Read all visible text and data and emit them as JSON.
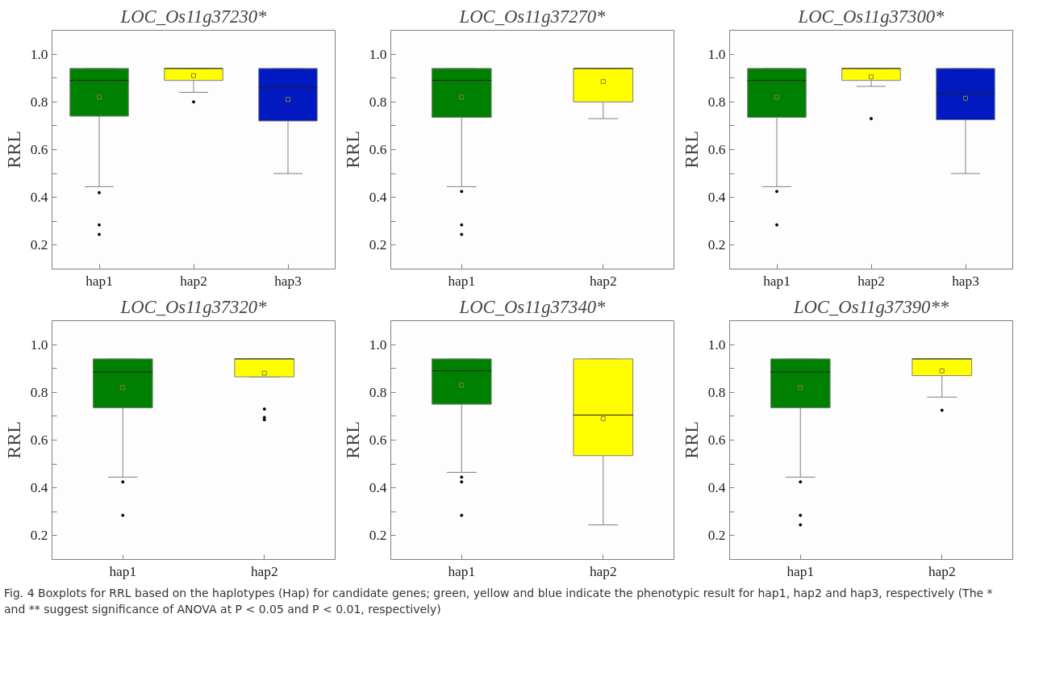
{
  "chart_data": [
    {
      "type": "box",
      "title": "LOC_Os11g37230*",
      "ylabel": "RRL",
      "categories": [
        "hap1",
        "hap2",
        "hap3"
      ],
      "colors": [
        "#008000",
        "#ffff00",
        "#0019c0"
      ],
      "ylim": [
        0.1,
        1.1
      ],
      "yticks": [
        {
          "value": 0.1,
          "label": null
        },
        {
          "value": 0.2,
          "label": "0.2"
        },
        {
          "value": 0.3,
          "label": null
        },
        {
          "value": 0.4,
          "label": "0.4"
        },
        {
          "value": 0.5,
          "label": null
        },
        {
          "value": 0.6,
          "label": "0.6"
        },
        {
          "value": 0.7,
          "label": null
        },
        {
          "value": 0.8,
          "label": "0.8"
        },
        {
          "value": 0.9,
          "label": null
        },
        {
          "value": 1.0,
          "label": "1.0"
        }
      ],
      "grid": false,
      "marker": "square",
      "boxes": [
        {
          "low": 0.445,
          "q1": 0.74,
          "median": 0.89,
          "q3": 0.94,
          "high": 0.94,
          "mean": 0.82,
          "outliers": [
            0.42,
            0.285,
            0.245
          ]
        },
        {
          "low": 0.84,
          "q1": 0.89,
          "median": 0.94,
          "q3": 0.94,
          "high": 0.94,
          "mean": 0.91,
          "outliers": [
            0.8
          ]
        },
        {
          "low": 0.5,
          "q1": 0.72,
          "median": 0.86,
          "q3": 0.94,
          "high": 0.94,
          "mean": 0.81
        }
      ]
    },
    {
      "type": "box",
      "title": "LOC_Os11g37270*",
      "ylabel": "RRL",
      "categories": [
        "hap1",
        "hap2"
      ],
      "colors": [
        "#008000",
        "#ffff00"
      ],
      "ylim": [
        0.1,
        1.1
      ],
      "yticks": [
        {
          "value": 0.1,
          "label": null
        },
        {
          "value": 0.2,
          "label": "0.2"
        },
        {
          "value": 0.3,
          "label": null
        },
        {
          "value": 0.4,
          "label": "0.4"
        },
        {
          "value": 0.5,
          "label": null
        },
        {
          "value": 0.6,
          "label": "0.6"
        },
        {
          "value": 0.7,
          "label": null
        },
        {
          "value": 0.8,
          "label": "0.8"
        },
        {
          "value": 0.9,
          "label": null
        },
        {
          "value": 1.0,
          "label": "1.0"
        }
      ],
      "grid": false,
      "marker": "square",
      "boxes": [
        {
          "low": 0.445,
          "q1": 0.735,
          "median": 0.89,
          "q3": 0.94,
          "high": 0.94,
          "mean": 0.82,
          "outliers": [
            0.425,
            0.285,
            0.245
          ]
        },
        {
          "low": 0.73,
          "q1": 0.8,
          "median": 0.94,
          "q3": 0.94,
          "high": 0.94,
          "mean": 0.885
        }
      ]
    },
    {
      "type": "box",
      "title": "LOC_Os11g37300*",
      "ylabel": "RRL",
      "categories": [
        "hap1",
        "hap2",
        "hap3"
      ],
      "colors": [
        "#008000",
        "#ffff00",
        "#0019c0"
      ],
      "ylim": [
        0.1,
        1.1
      ],
      "yticks": [
        {
          "value": 0.1,
          "label": null
        },
        {
          "value": 0.2,
          "label": "0.2"
        },
        {
          "value": 0.3,
          "label": null
        },
        {
          "value": 0.4,
          "label": "0.4"
        },
        {
          "value": 0.5,
          "label": null
        },
        {
          "value": 0.6,
          "label": "0.6"
        },
        {
          "value": 0.7,
          "label": null
        },
        {
          "value": 0.8,
          "label": "0.8"
        },
        {
          "value": 0.9,
          "label": null
        },
        {
          "value": 1.0,
          "label": "1.0"
        }
      ],
      "grid": false,
      "marker": "square",
      "boxes": [
        {
          "low": 0.445,
          "q1": 0.735,
          "median": 0.89,
          "q3": 0.94,
          "high": 0.94,
          "mean": 0.82,
          "outliers": [
            0.425,
            0.285
          ]
        },
        {
          "low": 0.865,
          "q1": 0.89,
          "median": 0.94,
          "q3": 0.94,
          "high": 0.94,
          "mean": 0.905,
          "outliers": [
            0.73
          ]
        },
        {
          "low": 0.5,
          "q1": 0.725,
          "median": 0.835,
          "q3": 0.94,
          "high": 0.94,
          "mean": 0.815
        }
      ]
    },
    {
      "type": "box",
      "title": "LOC_Os11g37320*",
      "ylabel": "RRL",
      "categories": [
        "hap1",
        "hap2"
      ],
      "colors": [
        "#008000",
        "#ffff00"
      ],
      "ylim": [
        0.1,
        1.1
      ],
      "yticks": [
        {
          "value": 0.1,
          "label": null
        },
        {
          "value": 0.2,
          "label": "0.2"
        },
        {
          "value": 0.3,
          "label": null
        },
        {
          "value": 0.4,
          "label": "0.4"
        },
        {
          "value": 0.5,
          "label": null
        },
        {
          "value": 0.6,
          "label": "0.6"
        },
        {
          "value": 0.7,
          "label": null
        },
        {
          "value": 0.8,
          "label": "0.8"
        },
        {
          "value": 0.9,
          "label": null
        },
        {
          "value": 1.0,
          "label": "1.0"
        }
      ],
      "grid": false,
      "marker": "square",
      "boxes": [
        {
          "low": 0.445,
          "q1": 0.735,
          "median": 0.885,
          "q3": 0.94,
          "high": 0.94,
          "mean": 0.82,
          "outliers": [
            0.425,
            0.285
          ]
        },
        {
          "low": 0.865,
          "q1": 0.865,
          "median": 0.94,
          "q3": 0.94,
          "high": 0.94,
          "mean": 0.88,
          "outliers": [
            0.73,
            0.695,
            0.685
          ]
        }
      ]
    },
    {
      "type": "box",
      "title": "LOC_Os11g37340*",
      "ylabel": "RRL",
      "categories": [
        "hap1",
        "hap2"
      ],
      "colors": [
        "#008000",
        "#ffff00"
      ],
      "ylim": [
        0.1,
        1.1
      ],
      "yticks": [
        {
          "value": 0.1,
          "label": null
        },
        {
          "value": 0.2,
          "label": "0.2"
        },
        {
          "value": 0.3,
          "label": null
        },
        {
          "value": 0.4,
          "label": "0.4"
        },
        {
          "value": 0.5,
          "label": null
        },
        {
          "value": 0.6,
          "label": "0.6"
        },
        {
          "value": 0.7,
          "label": null
        },
        {
          "value": 0.8,
          "label": "0.8"
        },
        {
          "value": 0.9,
          "label": null
        },
        {
          "value": 1.0,
          "label": "1.0"
        }
      ],
      "grid": false,
      "marker": "square",
      "boxes": [
        {
          "low": 0.465,
          "q1": 0.75,
          "median": 0.89,
          "q3": 0.94,
          "high": 0.94,
          "mean": 0.83,
          "outliers": [
            0.445,
            0.425,
            0.285
          ]
        },
        {
          "low": 0.245,
          "q1": 0.535,
          "median": 0.705,
          "q3": 0.94,
          "high": 0.94,
          "mean": 0.69
        }
      ]
    },
    {
      "type": "box",
      "title": "LOC_Os11g37390**",
      "ylabel": "RRL",
      "categories": [
        "hap1",
        "hap2"
      ],
      "colors": [
        "#008000",
        "#ffff00"
      ],
      "ylim": [
        0.1,
        1.1
      ],
      "yticks": [
        {
          "value": 0.1,
          "label": null
        },
        {
          "value": 0.2,
          "label": "0.2"
        },
        {
          "value": 0.3,
          "label": null
        },
        {
          "value": 0.4,
          "label": "0.4"
        },
        {
          "value": 0.5,
          "label": null
        },
        {
          "value": 0.6,
          "label": "0.6"
        },
        {
          "value": 0.7,
          "label": null
        },
        {
          "value": 0.8,
          "label": "0.8"
        },
        {
          "value": 0.9,
          "label": null
        },
        {
          "value": 1.0,
          "label": "1.0"
        }
      ],
      "grid": false,
      "marker": "square",
      "boxes": [
        {
          "low": 0.445,
          "q1": 0.735,
          "median": 0.885,
          "q3": 0.94,
          "high": 0.94,
          "mean": 0.82,
          "outliers": [
            0.425,
            0.285,
            0.245
          ]
        },
        {
          "low": 0.78,
          "q1": 0.87,
          "median": 0.94,
          "q3": 0.94,
          "high": 0.94,
          "mean": 0.89,
          "outliers": [
            0.725
          ]
        }
      ],
      "annotations": [
        "Fig. 4 Boxplots for RRL based on the haplotypes (Hap) for candidate genes; green, yellow and blue indicate the phenotypic result for hap1, hap2 and hap3, respectively (The * and ** suggest significance of ANOVA at P < 0.05 and P < 0.01, respectively)"
      ]
    }
  ]
}
